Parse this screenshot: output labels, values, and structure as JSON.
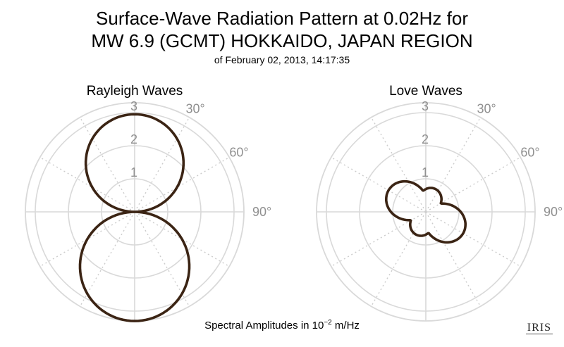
{
  "title": {
    "line1": "Surface-Wave Radiation Pattern at 0.02Hz for",
    "line2": "MW 6.9 (GCMT) HOKKAIDO, JAPAN REGION",
    "date": "of February 02, 2013, 14:17:35"
  },
  "footer": {
    "prefix": "Spectral Amplitudes in ",
    "base": "10",
    "exponent": "−2",
    "unit": " m/Hz"
  },
  "logo": "IRIS",
  "colors": {
    "pattern": "#3b2414",
    "grid": "#d9d9d9",
    "grid_dotted": "#cccccc",
    "tick_label": "#909090"
  },
  "chart_data": [
    {
      "type": "polar",
      "title": "Rayleigh Waves",
      "r_ticks": [
        "1",
        "2",
        "3"
      ],
      "rlim": [
        0,
        3.5
      ],
      "theta_labels": [
        "30°",
        "60°",
        "90°"
      ],
      "theta_zero": "top",
      "theta_direction": "clockwise",
      "grid": true,
      "series": [
        {
          "pattern": "cos",
          "lobes": [
            {
              "azimuth_deg": 0,
              "max_amplitude": 2.95
            },
            {
              "azimuth_deg": 180,
              "max_amplitude": 3.3
            }
          ]
        }
      ]
    },
    {
      "type": "polar",
      "title": "Love Waves",
      "r_ticks": [
        "1",
        "2",
        "3"
      ],
      "rlim": [
        0,
        3.5
      ],
      "theta_labels": [
        "30°",
        "60°",
        "90°"
      ],
      "theta_zero": "top",
      "theta_direction": "clockwise",
      "grid": true,
      "series": [
        {
          "pattern": "four-lobe",
          "lobes": [
            {
              "azimuth_deg": 20,
              "max_amplitude": 0.65
            },
            {
              "azimuth_deg": 120,
              "max_amplitude": 1.2
            },
            {
              "azimuth_deg": 200,
              "max_amplitude": 0.65
            },
            {
              "azimuth_deg": 300,
              "max_amplitude": 1.2
            }
          ]
        }
      ]
    }
  ]
}
